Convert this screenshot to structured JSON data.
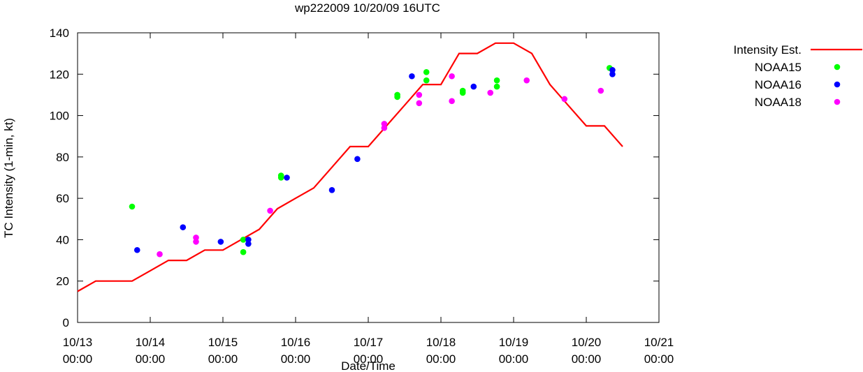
{
  "chart_data": {
    "type": "line+scatter",
    "title": "wp222009 10/20/09 16UTC",
    "xlabel": "Date/Time",
    "ylabel": "TC Intensity (1-min, kt)",
    "xlim": [
      0,
      8
    ],
    "ylim": [
      0,
      140
    ],
    "x_ticks": [
      {
        "value": 0,
        "line1": "10/13",
        "line2": "00:00"
      },
      {
        "value": 1,
        "line1": "10/14",
        "line2": "00:00"
      },
      {
        "value": 2,
        "line1": "10/15",
        "line2": "00:00"
      },
      {
        "value": 3,
        "line1": "10/16",
        "line2": "00:00"
      },
      {
        "value": 4,
        "line1": "10/17",
        "line2": "00:00"
      },
      {
        "value": 5,
        "line1": "10/18",
        "line2": "00:00"
      },
      {
        "value": 6,
        "line1": "10/19",
        "line2": "00:00"
      },
      {
        "value": 7,
        "line1": "10/20",
        "line2": "00:00"
      },
      {
        "value": 8,
        "line1": "10/21",
        "line2": "00:00"
      }
    ],
    "y_ticks": [
      "0",
      "20",
      "40",
      "60",
      "80",
      "100",
      "120",
      "140"
    ],
    "y_tick_values": [
      0,
      20,
      40,
      60,
      80,
      100,
      120,
      140
    ],
    "series": [
      {
        "name": "Intensity Est.",
        "kind": "line",
        "color": "#ff0000",
        "points": [
          [
            0.0,
            15
          ],
          [
            0.25,
            20
          ],
          [
            0.5,
            20
          ],
          [
            0.75,
            20
          ],
          [
            1.0,
            25
          ],
          [
            1.25,
            30
          ],
          [
            1.5,
            30
          ],
          [
            1.75,
            35
          ],
          [
            2.0,
            35
          ],
          [
            2.25,
            40
          ],
          [
            2.5,
            45
          ],
          [
            2.75,
            55
          ],
          [
            3.0,
            60
          ],
          [
            3.25,
            65
          ],
          [
            3.5,
            75
          ],
          [
            3.75,
            85
          ],
          [
            4.0,
            85
          ],
          [
            4.25,
            95
          ],
          [
            4.5,
            105
          ],
          [
            4.75,
            115
          ],
          [
            5.0,
            115
          ],
          [
            5.25,
            130
          ],
          [
            5.5,
            130
          ],
          [
            5.75,
            135
          ],
          [
            6.0,
            135
          ],
          [
            6.25,
            130
          ],
          [
            6.5,
            115
          ],
          [
            6.75,
            105
          ],
          [
            7.0,
            95
          ],
          [
            7.25,
            95
          ],
          [
            7.5,
            85
          ]
        ]
      },
      {
        "name": "NOAA15",
        "kind": "scatter",
        "color": "#00ff00",
        "points": [
          [
            0.75,
            56
          ],
          [
            2.28,
            34
          ],
          [
            2.28,
            40
          ],
          [
            2.8,
            70
          ],
          [
            2.8,
            71
          ],
          [
            4.4,
            109
          ],
          [
            4.4,
            110
          ],
          [
            4.8,
            117
          ],
          [
            4.8,
            121
          ],
          [
            5.3,
            111
          ],
          [
            5.3,
            112
          ],
          [
            5.77,
            114
          ],
          [
            5.77,
            117
          ],
          [
            7.32,
            123
          ]
        ]
      },
      {
        "name": "NOAA16",
        "kind": "scatter",
        "color": "#0000ff",
        "points": [
          [
            0.82,
            35
          ],
          [
            1.45,
            46
          ],
          [
            1.97,
            39
          ],
          [
            2.35,
            38
          ],
          [
            2.35,
            40
          ],
          [
            2.88,
            70
          ],
          [
            3.5,
            64
          ],
          [
            3.85,
            79
          ],
          [
            4.6,
            119
          ],
          [
            5.45,
            114
          ],
          [
            7.36,
            120
          ],
          [
            7.36,
            122
          ]
        ]
      },
      {
        "name": "NOAA18",
        "kind": "scatter",
        "color": "#ff00ff",
        "points": [
          [
            1.13,
            33
          ],
          [
            1.63,
            39
          ],
          [
            1.63,
            41
          ],
          [
            2.65,
            54
          ],
          [
            4.22,
            94
          ],
          [
            4.22,
            96
          ],
          [
            4.7,
            106
          ],
          [
            4.7,
            110
          ],
          [
            5.15,
            107
          ],
          [
            5.15,
            119
          ],
          [
            5.68,
            111
          ],
          [
            6.18,
            117
          ],
          [
            6.7,
            108
          ],
          [
            7.2,
            112
          ]
        ]
      }
    ],
    "legend_position": "top-right"
  }
}
